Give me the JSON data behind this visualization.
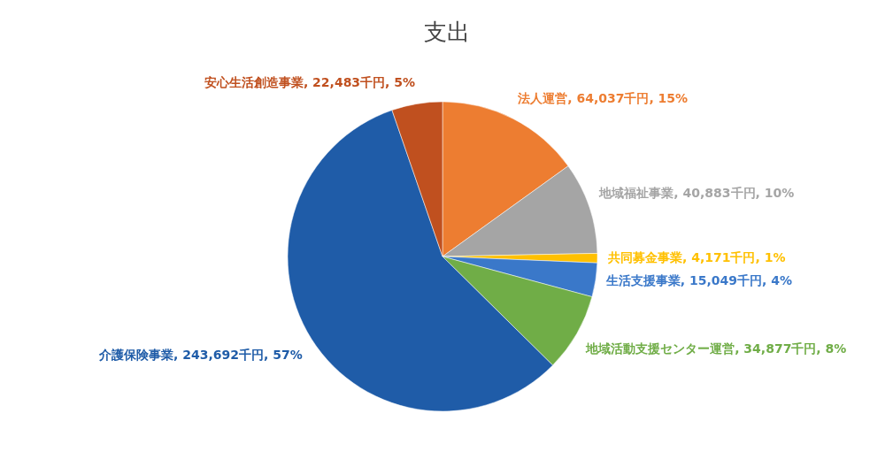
{
  "chart_data": {
    "type": "pie",
    "title": "支出",
    "categories": [
      "法人運営",
      "地域福祉事業",
      "共同募金事業",
      "生活支援事業",
      "地域活動支援センター運営",
      "介護保険事業",
      "安心生活創造事業"
    ],
    "values": [
      64037,
      40883,
      4171,
      15049,
      34877,
      243692,
      22483
    ],
    "colors": [
      "#ed7d31",
      "#a5a5a5",
      "#ffc000",
      "#3a78c9",
      "#70ad47",
      "#1f5ca8",
      "#c0501f"
    ],
    "value_labels": [
      "64,037千円, 15%",
      "40,883千円, 10%",
      "4,171千円, 1%",
      "15,049千円, 4%",
      "34,877千円, 8%",
      "243,692千円, 57%",
      "22,483千円, 5%"
    ]
  }
}
